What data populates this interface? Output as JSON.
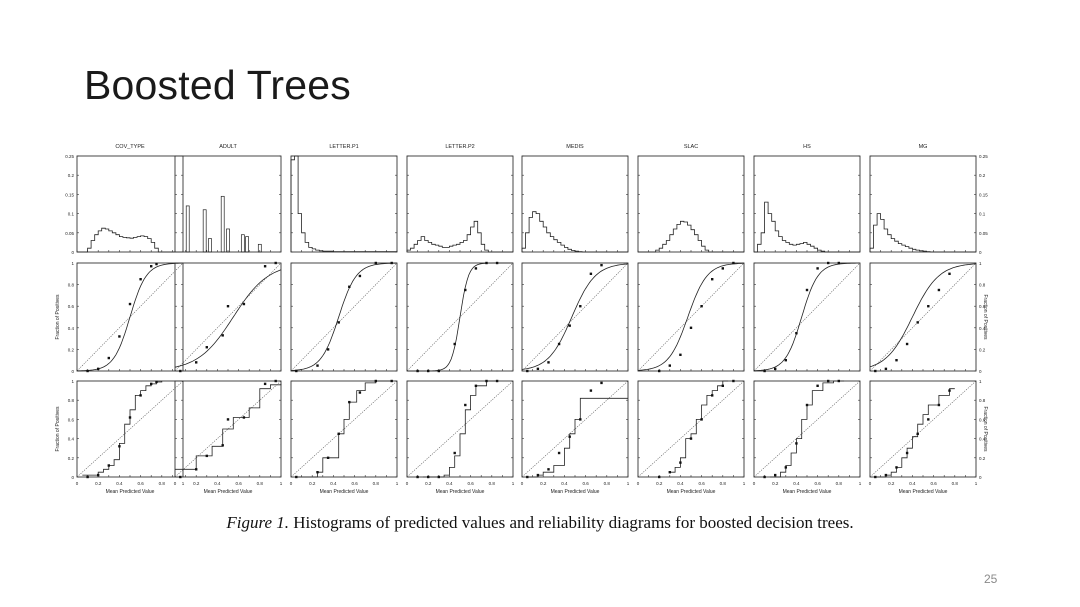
{
  "slide": {
    "title": "Boosted Trees",
    "caption_label": "Figure 1.",
    "caption_text": " Histograms of predicted values and reliability diagrams for boosted decision trees.",
    "page_number": "25"
  },
  "chart_data": {
    "type": "panel-grid",
    "datasets": [
      "COV_TYPE",
      "ADULT",
      "LETTER.P1",
      "LETTER.P2",
      "MEDIS",
      "SLAC",
      "HS",
      "MG"
    ],
    "rows": [
      {
        "type": "histogram",
        "ylim": [
          0,
          0.25
        ],
        "yticks": [
          "0",
          "0.05",
          "0.1",
          "0.15",
          "0.2",
          "0.25"
        ],
        "xlim": [
          0,
          1
        ]
      },
      {
        "type": "reliability-sigmoid-fit",
        "ylabel": "Fraction of Positives",
        "xlim": [
          0,
          1
        ],
        "ylim": [
          0,
          1
        ],
        "yticks": [
          "0",
          "0.2",
          "0.4",
          "0.6",
          "0.8",
          "1"
        ]
      },
      {
        "type": "reliability-isotonic-fit",
        "ylabel": "Fraction of Positives",
        "xlabel": "Mean Predicted Value",
        "xlim": [
          0,
          1
        ],
        "ylim": [
          0,
          1
        ],
        "xticks": [
          "0",
          "0.2",
          "0.4",
          "0.6",
          "0.8",
          "1"
        ],
        "yticks": [
          "0",
          "0.2",
          "0.4",
          "0.6",
          "0.8",
          "1"
        ]
      }
    ],
    "panels": [
      {
        "name": "COV_TYPE",
        "histogram": [
          0,
          0,
          0,
          0.01,
          0.03,
          0.045,
          0.055,
          0.062,
          0.06,
          0.055,
          0.05,
          0.045,
          0.04,
          0.038,
          0.037,
          0.036,
          0.038,
          0.04,
          0.042,
          0.04,
          0.035,
          0.025,
          0.01,
          0,
          0,
          0,
          0,
          0,
          0,
          0
        ],
        "sigmoid": {
          "a": 13,
          "b": 0.5
        },
        "points": [
          [
            0.1,
            0.0
          ],
          [
            0.2,
            0.02
          ],
          [
            0.3,
            0.12
          ],
          [
            0.4,
            0.32
          ],
          [
            0.5,
            0.62
          ],
          [
            0.6,
            0.85
          ],
          [
            0.7,
            0.97
          ],
          [
            0.75,
            0.99
          ]
        ],
        "steps": [
          [
            0.05,
            0.02
          ],
          [
            0.2,
            0.05
          ],
          [
            0.25,
            0.08
          ],
          [
            0.3,
            0.12
          ],
          [
            0.35,
            0.18
          ],
          [
            0.4,
            0.35
          ],
          [
            0.45,
            0.55
          ],
          [
            0.5,
            0.7
          ],
          [
            0.55,
            0.85
          ],
          [
            0.6,
            0.9
          ],
          [
            0.65,
            0.95
          ],
          [
            0.7,
            0.97
          ],
          [
            0.75,
            0.99
          ],
          [
            0.8,
            1.0
          ]
        ]
      },
      {
        "name": "ADULT",
        "bars": [
          [
            0.12,
            0.12
          ],
          [
            0.28,
            0.11
          ],
          [
            0.33,
            0.035
          ],
          [
            0.45,
            0.145
          ],
          [
            0.5,
            0.06
          ],
          [
            0.64,
            0.045
          ],
          [
            0.68,
            0.04
          ],
          [
            0.8,
            0.02
          ]
        ],
        "sigmoid": {
          "a": 6,
          "b": 0.55
        },
        "points": [
          [
            0.05,
            0.0
          ],
          [
            0.2,
            0.08
          ],
          [
            0.3,
            0.22
          ],
          [
            0.45,
            0.33
          ],
          [
            0.5,
            0.6
          ],
          [
            0.65,
            0.62
          ],
          [
            0.85,
            0.97
          ],
          [
            0.95,
            1.0
          ]
        ],
        "steps": [
          [
            0.0,
            0.08
          ],
          [
            0.15,
            0.08
          ],
          [
            0.2,
            0.22
          ],
          [
            0.35,
            0.32
          ],
          [
            0.45,
            0.5
          ],
          [
            0.55,
            0.62
          ],
          [
            0.7,
            0.72
          ],
          [
            0.8,
            0.92
          ],
          [
            0.9,
            0.96
          ],
          [
            1.0,
            0.97
          ]
        ]
      },
      {
        "name": "LETTER.P1",
        "histogram": [
          0.24,
          0.25,
          0.1,
          0.05,
          0.025,
          0.012,
          0.008,
          0.005,
          0.003,
          0.002,
          0.002,
          0.002,
          0.001,
          0.001,
          0.001,
          0.001,
          0.001,
          0.001,
          0.001,
          0.001,
          0.001,
          0.001,
          0.001,
          0.001,
          0.001,
          0.001,
          0.001,
          0.001,
          0.001,
          0.001
        ],
        "sigmoid": {
          "a": 12,
          "b": 0.45
        },
        "points": [
          [
            0.05,
            0.0
          ],
          [
            0.25,
            0.05
          ],
          [
            0.35,
            0.2
          ],
          [
            0.45,
            0.45
          ],
          [
            0.55,
            0.78
          ],
          [
            0.65,
            0.88
          ],
          [
            0.8,
            1.0
          ],
          [
            0.95,
            1.0
          ]
        ],
        "steps": [
          [
            0.05,
            0.0
          ],
          [
            0.25,
            0.05
          ],
          [
            0.3,
            0.2
          ],
          [
            0.45,
            0.45
          ],
          [
            0.5,
            0.6
          ],
          [
            0.55,
            0.78
          ],
          [
            0.62,
            0.9
          ],
          [
            0.7,
            0.98
          ],
          [
            0.8,
            1.0
          ],
          [
            0.95,
            1.0
          ]
        ]
      },
      {
        "name": "LETTER.P2",
        "histogram": [
          0.005,
          0.01,
          0.02,
          0.03,
          0.04,
          0.03,
          0.025,
          0.02,
          0.018,
          0.015,
          0.012,
          0.012,
          0.015,
          0.018,
          0.02,
          0.025,
          0.03,
          0.045,
          0.065,
          0.08,
          0.05,
          0.02,
          0.005,
          0,
          0,
          0,
          0,
          0,
          0,
          0
        ],
        "sigmoid": {
          "a": 25,
          "b": 0.5
        },
        "points": [
          [
            0.1,
            0.0
          ],
          [
            0.2,
            0.0
          ],
          [
            0.3,
            0.0
          ],
          [
            0.45,
            0.25
          ],
          [
            0.55,
            0.75
          ],
          [
            0.65,
            0.95
          ],
          [
            0.75,
            1.0
          ],
          [
            0.85,
            1.0
          ]
        ],
        "steps": [
          [
            0.15,
            0.0
          ],
          [
            0.35,
            0.02
          ],
          [
            0.4,
            0.1
          ],
          [
            0.45,
            0.22
          ],
          [
            0.5,
            0.45
          ],
          [
            0.55,
            0.7
          ],
          [
            0.6,
            0.85
          ],
          [
            0.65,
            0.95
          ],
          [
            0.75,
            1.0
          ],
          [
            0.85,
            1.0
          ]
        ]
      },
      {
        "name": "MEDIS",
        "histogram": [
          0.01,
          0.05,
          0.09,
          0.105,
          0.1,
          0.08,
          0.065,
          0.05,
          0.04,
          0.032,
          0.025,
          0.018,
          0.012,
          0.007,
          0.004,
          0.002,
          0.001,
          0,
          0,
          0,
          0,
          0,
          0,
          0,
          0,
          0,
          0,
          0,
          0,
          0
        ],
        "sigmoid": {
          "a": 9,
          "b": 0.47
        },
        "points": [
          [
            0.05,
            0.0
          ],
          [
            0.15,
            0.02
          ],
          [
            0.25,
            0.08
          ],
          [
            0.35,
            0.25
          ],
          [
            0.45,
            0.42
          ],
          [
            0.55,
            0.6
          ],
          [
            0.65,
            0.9
          ],
          [
            0.75,
            0.98
          ]
        ],
        "steps": [
          [
            0.05,
            0.0
          ],
          [
            0.15,
            0.02
          ],
          [
            0.2,
            0.05
          ],
          [
            0.3,
            0.12
          ],
          [
            0.4,
            0.3
          ],
          [
            0.45,
            0.45
          ],
          [
            0.5,
            0.6
          ],
          [
            0.55,
            0.82
          ],
          [
            0.6,
            0.82
          ],
          [
            0.7,
            0.82
          ],
          [
            1.0,
            0.82
          ]
        ]
      },
      {
        "name": "SLAC",
        "histogram": [
          0,
          0,
          0,
          0,
          0,
          0.005,
          0.01,
          0.02,
          0.03,
          0.045,
          0.06,
          0.072,
          0.08,
          0.078,
          0.07,
          0.058,
          0.045,
          0.03,
          0.015,
          0.005,
          0,
          0,
          0,
          0,
          0,
          0,
          0,
          0,
          0,
          0
        ],
        "sigmoid": {
          "a": 11,
          "b": 0.47
        },
        "points": [
          [
            0.2,
            0.0
          ],
          [
            0.3,
            0.05
          ],
          [
            0.4,
            0.15
          ],
          [
            0.5,
            0.4
          ],
          [
            0.6,
            0.6
          ],
          [
            0.7,
            0.85
          ],
          [
            0.8,
            0.95
          ],
          [
            0.9,
            1.0
          ]
        ],
        "steps": [
          [
            0.3,
            0.05
          ],
          [
            0.35,
            0.1
          ],
          [
            0.4,
            0.2
          ],
          [
            0.45,
            0.4
          ],
          [
            0.5,
            0.45
          ],
          [
            0.55,
            0.6
          ],
          [
            0.6,
            0.75
          ],
          [
            0.65,
            0.85
          ],
          [
            0.7,
            0.9
          ],
          [
            0.75,
            0.95
          ],
          [
            0.8,
            1.0
          ],
          [
            0.85,
            1.0
          ]
        ]
      },
      {
        "name": "HS",
        "histogram": [
          0,
          0.02,
          0.05,
          0.13,
          0.1,
          0.08,
          0.055,
          0.04,
          0.03,
          0.025,
          0.02,
          0.018,
          0.02,
          0.022,
          0.025,
          0.02,
          0.015,
          0.01,
          0.005,
          0.002,
          0,
          0,
          0,
          0,
          0,
          0,
          0,
          0,
          0,
          0
        ],
        "sigmoid": {
          "a": 13,
          "b": 0.45
        },
        "points": [
          [
            0.1,
            0.0
          ],
          [
            0.2,
            0.02
          ],
          [
            0.3,
            0.1
          ],
          [
            0.4,
            0.35
          ],
          [
            0.5,
            0.75
          ],
          [
            0.6,
            0.95
          ],
          [
            0.7,
            1.0
          ],
          [
            0.8,
            1.0
          ]
        ],
        "steps": [
          [
            0.15,
            0.0
          ],
          [
            0.25,
            0.05
          ],
          [
            0.3,
            0.12
          ],
          [
            0.35,
            0.25
          ],
          [
            0.4,
            0.4
          ],
          [
            0.45,
            0.6
          ],
          [
            0.5,
            0.75
          ],
          [
            0.55,
            0.9
          ],
          [
            0.65,
            0.98
          ],
          [
            0.75,
            1.0
          ],
          [
            0.85,
            1.0
          ]
        ]
      },
      {
        "name": "MG",
        "histogram": [
          0.01,
          0.07,
          0.1,
          0.085,
          0.06,
          0.045,
          0.035,
          0.028,
          0.022,
          0.018,
          0.014,
          0.01,
          0.007,
          0.005,
          0.003,
          0.002,
          0.001,
          0,
          0,
          0,
          0,
          0,
          0,
          0,
          0,
          0,
          0,
          0,
          0,
          0
        ],
        "sigmoid": {
          "a": 8,
          "b": 0.4
        },
        "points": [
          [
            0.05,
            0.0
          ],
          [
            0.15,
            0.02
          ],
          [
            0.25,
            0.1
          ],
          [
            0.35,
            0.25
          ],
          [
            0.45,
            0.45
          ],
          [
            0.55,
            0.6
          ],
          [
            0.65,
            0.75
          ],
          [
            0.75,
            0.9
          ]
        ],
        "steps": [
          [
            0.05,
            0.0
          ],
          [
            0.15,
            0.02
          ],
          [
            0.2,
            0.05
          ],
          [
            0.25,
            0.1
          ],
          [
            0.3,
            0.2
          ],
          [
            0.35,
            0.3
          ],
          [
            0.4,
            0.42
          ],
          [
            0.45,
            0.55
          ],
          [
            0.5,
            0.65
          ],
          [
            0.55,
            0.75
          ],
          [
            0.65,
            0.85
          ],
          [
            0.75,
            0.92
          ],
          [
            0.8,
            0.92
          ]
        ]
      }
    ]
  }
}
